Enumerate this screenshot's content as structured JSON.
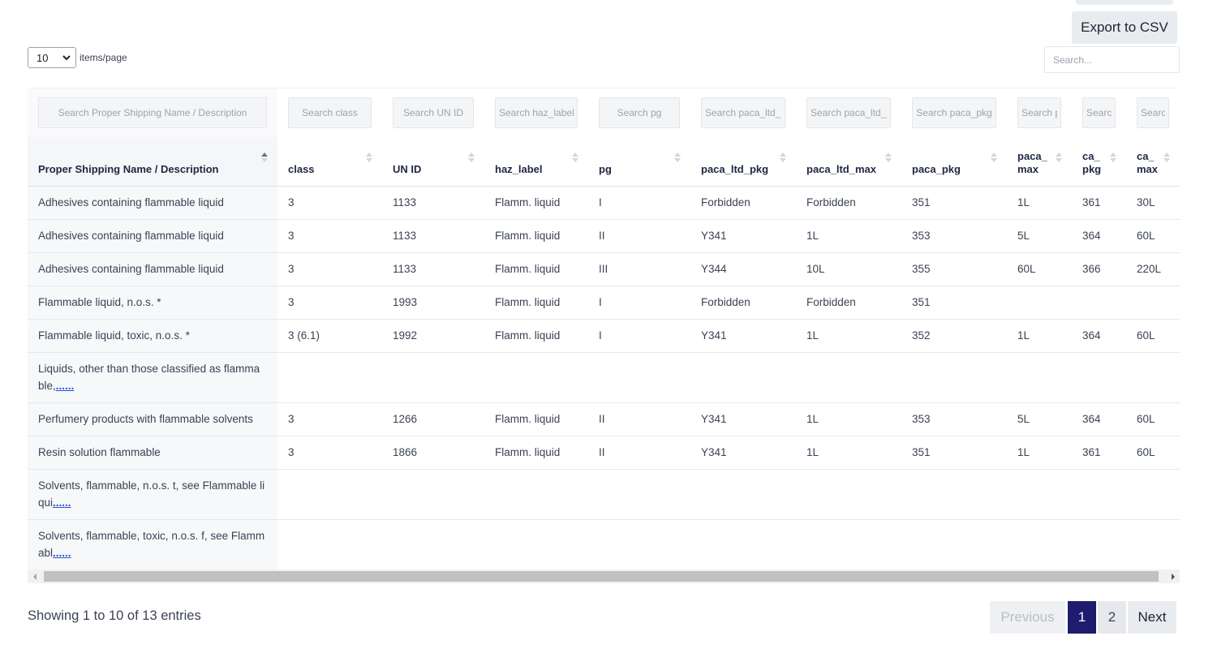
{
  "toolbar": {
    "export_label": "Export to CSV"
  },
  "length_menu": {
    "value": "10",
    "label": "items/page"
  },
  "global_search": {
    "placeholder": "Search..."
  },
  "filters": [
    "Search Proper Shipping Name / Description",
    "Search class",
    "Search UN ID",
    "Search haz_label",
    "Search pg",
    "Search paca_ltd_pkg",
    "Search paca_ltd_max",
    "Search paca_pkg",
    "Search paca_max",
    "Search ca_pkg",
    "Search ca_max"
  ],
  "columns": [
    "Proper Shipping Name / Description",
    "class",
    "UN ID",
    "haz_label",
    "pg",
    "paca_ltd_pkg",
    "paca_ltd_max",
    "paca_pkg",
    "paca_ max",
    "ca_ pkg",
    "ca_ max"
  ],
  "rows": [
    [
      "Adhesives containing flammable liquid",
      "3",
      "1133",
      "Flamm. liquid",
      "I",
      "Forbidden",
      "Forbidden",
      "351",
      "1L",
      "361",
      "30L"
    ],
    [
      "Adhesives containing flammable liquid",
      "3",
      "1133",
      "Flamm. liquid",
      "II",
      "Y341",
      "1L",
      "353",
      "5L",
      "364",
      "60L"
    ],
    [
      "Adhesives containing flammable liquid",
      "3",
      "1133",
      "Flamm. liquid",
      "III",
      "Y344",
      "10L",
      "355",
      "60L",
      "366",
      "220L"
    ],
    [
      "Flammable liquid, n.o.s. *",
      "3",
      "1993",
      "Flamm. liquid",
      "I",
      "Forbidden",
      "Forbidden",
      "351",
      "",
      "",
      ""
    ],
    [
      "Flammable liquid, toxic, n.o.s. *",
      "3 (6.1)",
      "1992",
      "Flamm. liquid",
      "I",
      "Y341",
      "1L",
      "352",
      "1L",
      "364",
      "60L"
    ],
    [
      "Liquids, other than those classified as flamma ble,",
      "",
      "",
      "",
      "",
      "",
      "",
      "",
      "",
      "",
      ""
    ],
    [
      "Perfumery products with flammable solvents",
      "3",
      "1266",
      "Flamm. liquid",
      "II",
      "Y341",
      "1L",
      "353",
      "5L",
      "364",
      "60L"
    ],
    [
      "Resin solution flammable",
      "3",
      "1866",
      "Flamm. liquid",
      "II",
      "Y341",
      "1L",
      "351",
      "1L",
      "361",
      "60L"
    ],
    [
      "Solvents, flammable, n.o.s. t, see Flammable li qui",
      "",
      "",
      "",
      "",
      "",
      "",
      "",
      "",
      "",
      ""
    ],
    [
      "Solvents, flammable, toxic, n.o.s. f, see Flamm abl",
      "",
      "",
      "",
      "",
      "",
      "",
      "",
      "",
      "",
      ""
    ]
  ],
  "truncated_rows": [
    5,
    8,
    9
  ],
  "more_label": "......",
  "info": {
    "text": "Showing 1 to 10 of 13 entries"
  },
  "pagination": {
    "previous": "Previous",
    "pages": [
      "1",
      "2"
    ],
    "current": "1",
    "next": "Next"
  },
  "colors": {
    "active_page": "#1e1c6e",
    "link": "#2a4ed8"
  },
  "icons": {
    "sort": "sort-icon",
    "sort_asc": "sort-ascending-icon",
    "select_chevron": "chevron-down-icon"
  }
}
